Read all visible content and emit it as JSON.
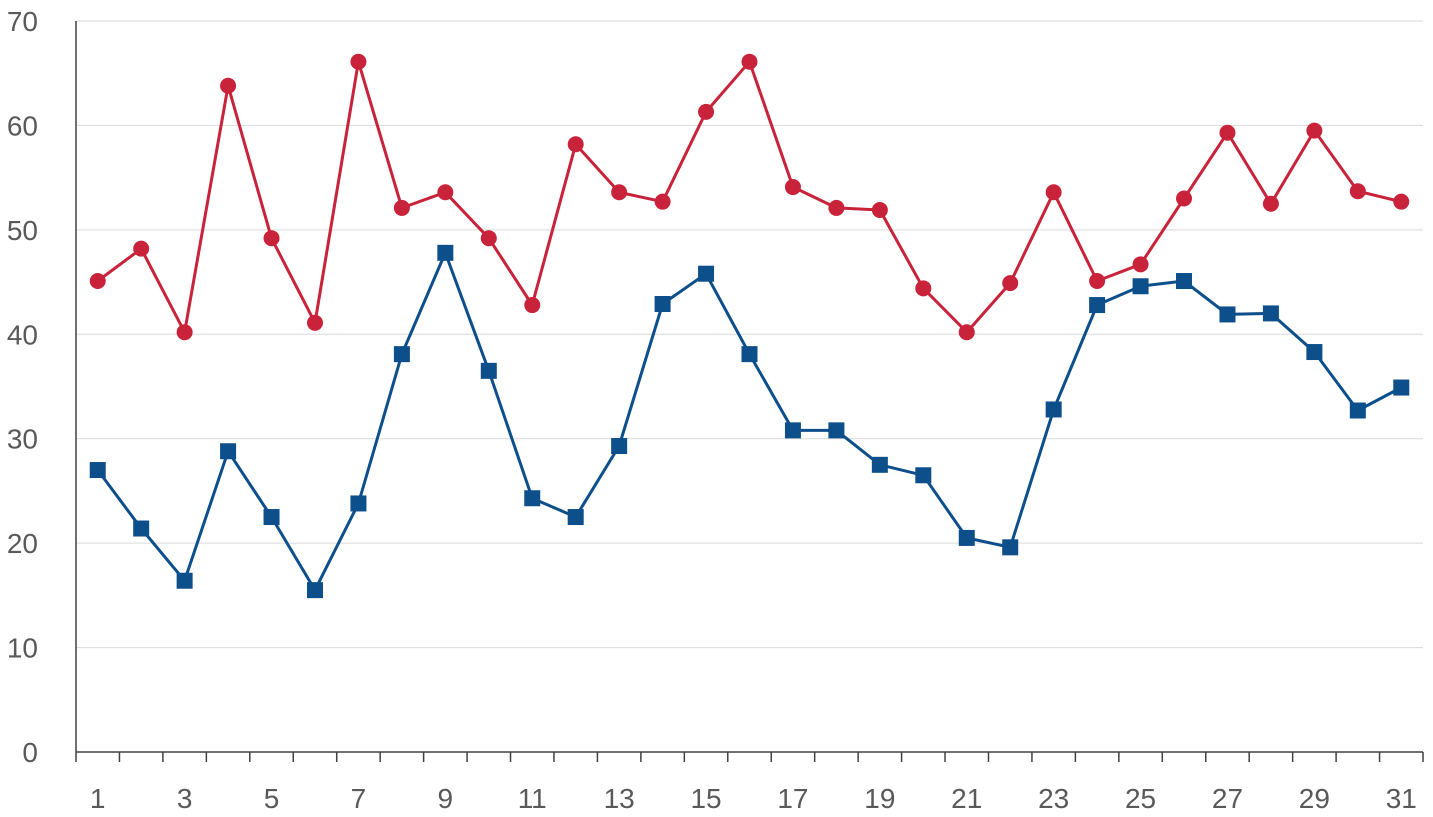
{
  "chart_data": {
    "type": "line",
    "title": "",
    "xlabel": "",
    "ylabel": "",
    "x": [
      1,
      2,
      3,
      4,
      5,
      6,
      7,
      8,
      9,
      10,
      11,
      12,
      13,
      14,
      15,
      16,
      17,
      18,
      19,
      20,
      21,
      22,
      23,
      24,
      25,
      26,
      27,
      28,
      29,
      30,
      31
    ],
    "x_tick_labels": [
      "1",
      "3",
      "5",
      "7",
      "9",
      "11",
      "13",
      "15",
      "17",
      "19",
      "21",
      "23",
      "25",
      "27",
      "29",
      "31"
    ],
    "y_ticks": [
      "0",
      "10",
      "20",
      "30",
      "40",
      "50",
      "60",
      "70"
    ],
    "ylim": [
      0,
      70
    ],
    "grid": true,
    "legend": "none",
    "series": [
      {
        "color": "#c8233a",
        "marker": "circle",
        "values": [
          45.1,
          48.2,
          40.2,
          63.8,
          49.2,
          41.1,
          66.1,
          52.1,
          53.6,
          49.2,
          42.8,
          58.2,
          53.6,
          52.7,
          61.3,
          66.1,
          54.1,
          52.1,
          51.9,
          44.4,
          40.2,
          44.9,
          53.6,
          45.1,
          46.7,
          53.0,
          59.3,
          52.5,
          59.5,
          53.7,
          52.7
        ]
      },
      {
        "color": "#0d4f8b",
        "marker": "square",
        "values": [
          27.0,
          21.4,
          16.4,
          28.8,
          22.5,
          15.5,
          23.8,
          38.1,
          47.8,
          36.5,
          24.3,
          22.5,
          29.3,
          42.9,
          45.8,
          38.1,
          30.8,
          30.8,
          27.5,
          26.5,
          20.5,
          19.6,
          32.8,
          42.8,
          44.6,
          45.1,
          41.9,
          42.0,
          38.3,
          32.7,
          34.9
        ]
      }
    ]
  }
}
